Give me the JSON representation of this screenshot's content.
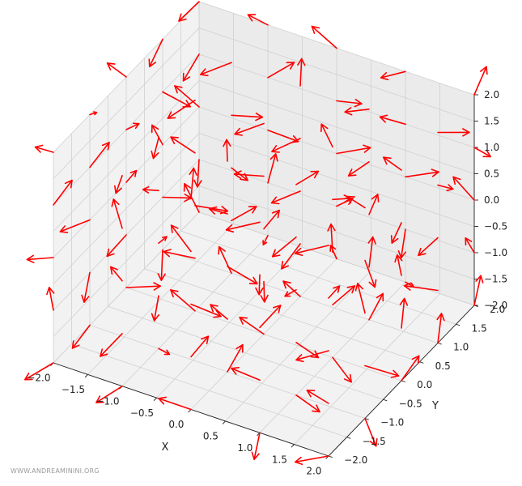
{
  "chart_data": {
    "type": "quiver3d",
    "title": "",
    "x_label": "X",
    "y_label": "Y",
    "z_label": "",
    "xlim": [
      -2.0,
      2.0
    ],
    "ylim": [
      -2.0,
      2.0
    ],
    "zlim": [
      -2.0,
      2.0
    ],
    "x_ticks": [
      "−2.0",
      "−1.5",
      "−1.0",
      "−0.5",
      "0.0",
      "0.5",
      "1.0",
      "1.5",
      "2.0"
    ],
    "y_ticks": [
      "−2.0",
      "−1.5",
      "−1.0",
      "−0.5",
      "0.0",
      "0.5",
      "1.0",
      "1.5",
      "2.0"
    ],
    "z_ticks": [
      "−2.0",
      "−1.5",
      "−1.0",
      "−0.5",
      "0.0",
      "0.5",
      "1.0",
      "1.5",
      "2.0"
    ],
    "grid": true,
    "arrow_color": "#ff0000",
    "grid_range": [
      -2.0,
      2.0
    ],
    "grid_points_per_axis": 5,
    "vector_field": "random unit directions (approx.)"
  },
  "watermark": "WWW.ANDREAMININI.ORG"
}
